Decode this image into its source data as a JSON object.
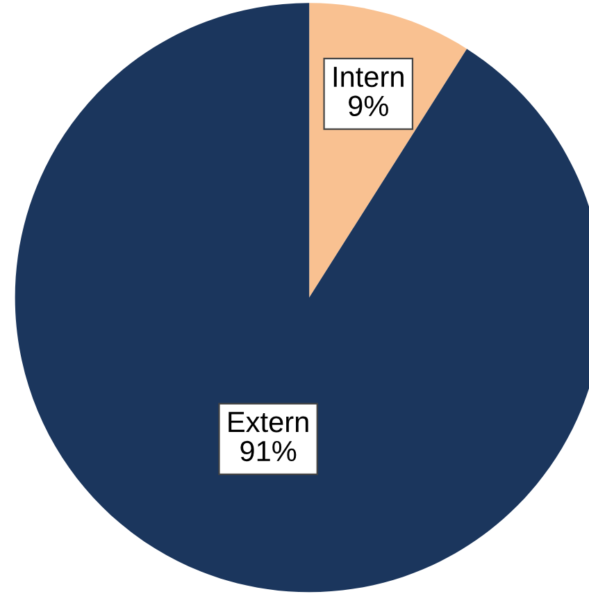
{
  "chart_data": {
    "type": "pie",
    "categories": [
      "Intern",
      "Extern"
    ],
    "values": [
      9,
      91
    ],
    "value_labels": [
      "9%",
      "91%"
    ],
    "colors": [
      "#f9c191",
      "#1b365d"
    ],
    "legend": false
  }
}
